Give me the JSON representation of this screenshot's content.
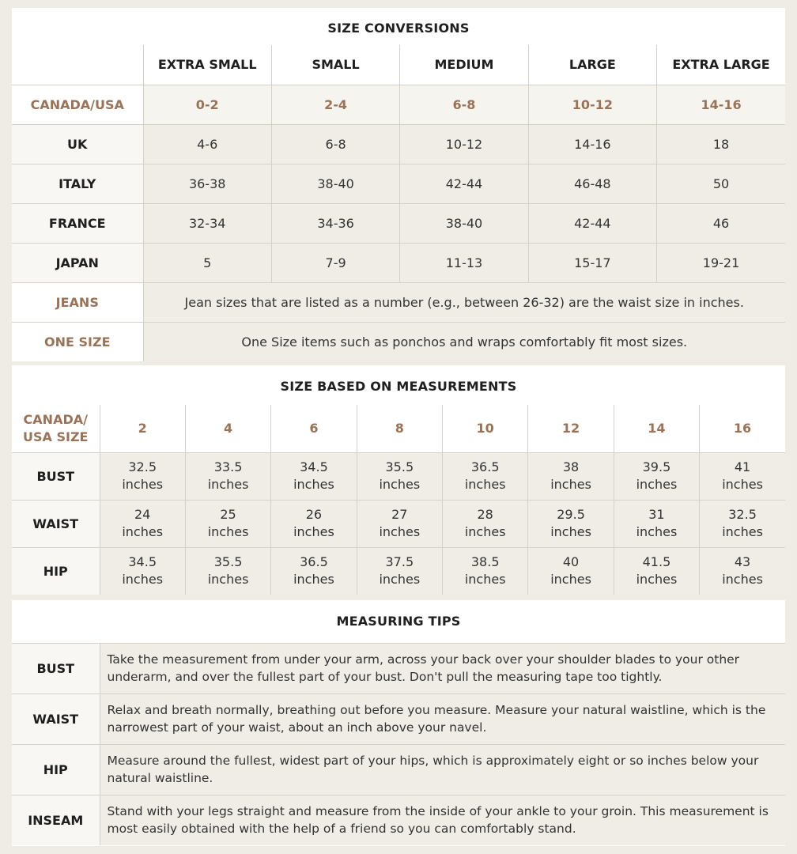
{
  "conversions": {
    "title": "SIZE CONVERSIONS",
    "columns": [
      "EXTRA SMALL",
      "SMALL",
      "MEDIUM",
      "LARGE",
      "EXTRA LARGE"
    ],
    "rows": [
      {
        "label": "CANADA/USA",
        "values": [
          "0-2",
          "2-4",
          "6-8",
          "10-12",
          "14-16"
        ]
      },
      {
        "label": "UK",
        "values": [
          "4-6",
          "6-8",
          "10-12",
          "14-16",
          "18"
        ]
      },
      {
        "label": "ITALY",
        "values": [
          "36-38",
          "38-40",
          "42-44",
          "46-48",
          "50"
        ]
      },
      {
        "label": "FRANCE",
        "values": [
          "32-34",
          "34-36",
          "38-40",
          "42-44",
          "46"
        ]
      },
      {
        "label": "JAPAN",
        "values": [
          "5",
          "7-9",
          "11-13",
          "15-17",
          "19-21"
        ]
      }
    ],
    "notes": [
      {
        "label": "JEANS",
        "text": "Jean sizes that are listed as a number (e.g., between 26-32) are the waist size in inches."
      },
      {
        "label": "ONE SIZE",
        "text": "One Size items such as ponchos and wraps comfortably fit most sizes."
      }
    ]
  },
  "measurements": {
    "title": "SIZE BASED ON MEASUREMENTS",
    "corner_line1": "CANADA/",
    "corner_line2": "USA SIZE",
    "sizes": [
      "2",
      "4",
      "6",
      "8",
      "10",
      "12",
      "14",
      "16"
    ],
    "unit": "inches",
    "rows": [
      {
        "label": "BUST",
        "values": [
          "32.5",
          "33.5",
          "34.5",
          "35.5",
          "36.5",
          "38",
          "39.5",
          "41"
        ]
      },
      {
        "label": "WAIST",
        "values": [
          "24",
          "25",
          "26",
          "27",
          "28",
          "29.5",
          "31",
          "32.5"
        ]
      },
      {
        "label": "HIP",
        "values": [
          "34.5",
          "35.5",
          "36.5",
          "37.5",
          "38.5",
          "40",
          "41.5",
          "43"
        ]
      }
    ]
  },
  "tips": {
    "title": "MEASURING TIPS",
    "rows": [
      {
        "label": "BUST",
        "text": "Take the measurement from under your arm, across your back over your shoulder blades to your other underarm, and over the fullest part of your bust. Don't pull the measuring tape too tightly."
      },
      {
        "label": "WAIST",
        "text": "Relax and breath normally, breathing out before you measure. Measure your natural waistline, which is the narrowest part of your waist, about an inch above your navel."
      },
      {
        "label": "HIP",
        "text": "Measure around the fullest, widest part of your hips, which is approximately eight or so inches below your natural waistline."
      },
      {
        "label": "INSEAM",
        "text": "Stand with your legs straight and measure from the inside of your ankle to your groin. This measurement is most easily obtained with the help of a friend so you can comfortably stand."
      }
    ]
  },
  "colors": {
    "accent_brown": "#9a7357",
    "cell_beige": "#efede6",
    "page_bg": "#eeece5"
  }
}
